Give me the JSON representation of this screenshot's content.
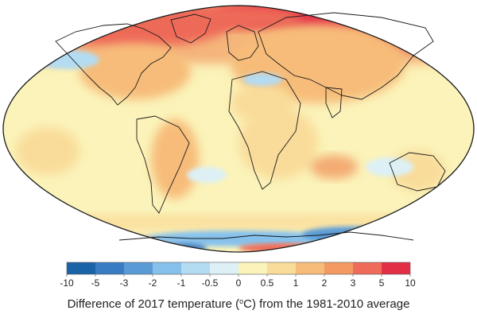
{
  "map": {
    "caption_prefix": "Difference of 2017 temperature (",
    "caption_unit": "°C",
    "caption_suffix": ") from the 1981-2010 average",
    "projection": "Robinson",
    "background_color": "#fbf3b9",
    "coast_color": "#1a1a1a",
    "highlights": [
      {
        "region": "north-america-central",
        "level": "warm"
      },
      {
        "region": "eurasia-arctic",
        "level": "very-warm"
      },
      {
        "region": "arctic-north-atlantic",
        "level": "warm"
      },
      {
        "region": "north-pacific",
        "level": "cool"
      },
      {
        "region": "southern-ocean",
        "level": "cool"
      },
      {
        "region": "antarctica-peninsula",
        "level": "warm"
      }
    ]
  },
  "legend": {
    "ticks": [
      "-10",
      "-5",
      "-3",
      "-2",
      "-1",
      "-0.5",
      "0",
      "0.5",
      "1",
      "2",
      "3",
      "5",
      "10"
    ],
    "colors": [
      "#1b63a8",
      "#3a7cc4",
      "#5a9bd6",
      "#86c1ec",
      "#b3dcf3",
      "#dcf0f6",
      "#fbf3b9",
      "#f9dc9a",
      "#f7bc79",
      "#f29a62",
      "#ee6b59",
      "#e22f45"
    ]
  }
}
